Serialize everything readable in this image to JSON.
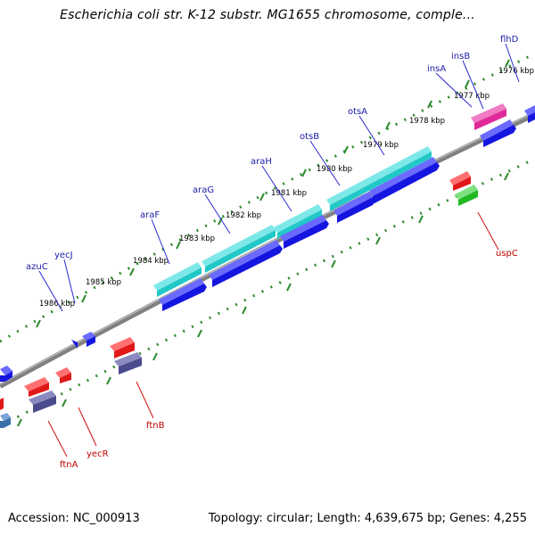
{
  "title": "Escherichia coli str. K-12 substr. MG1655 chromosome, comple...",
  "footer": {
    "accession": "Accession: NC_000913",
    "topology": "Topology: circular; Length: 4,639,675 bp; Genes: 4,255"
  },
  "colors": {
    "backbone": "#808080",
    "tick": "#2e8b2e",
    "cyan_gene": "#22c8c8",
    "blue_gene": "#1515e0",
    "red_gene": "#e01818",
    "purple_gene": "#4a4a8e",
    "magenta_gene": "#e0289a",
    "green_gene": "#22b822",
    "label_top": "#1a1aa6",
    "label_bottom": "#c00000"
  },
  "kbp_labels": [
    "1976 kbp",
    "1977 kbp",
    "1978 kbp",
    "1979 kbp",
    "1980 kbp",
    "1981 kbp",
    "1982 kbp",
    "1983 kbp",
    "1984 kbp",
    "1985 kbp",
    "1986 kbp"
  ],
  "genes_top": [
    "flhD",
    "insB",
    "insA",
    "otsA",
    "otsB",
    "araH",
    "araG",
    "araF",
    "yecJ",
    "azuC"
  ],
  "genes_bottom": [
    "uspC",
    "ftnB",
    "yecR",
    "ftnA"
  ]
}
